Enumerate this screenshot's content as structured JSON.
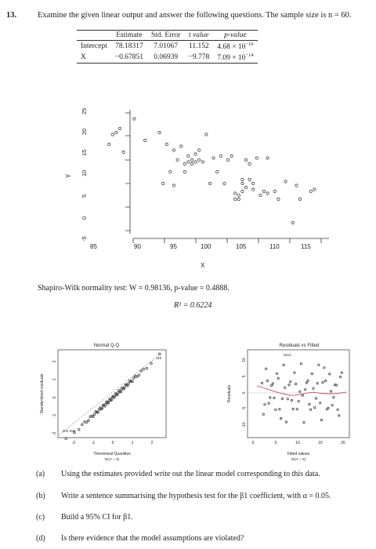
{
  "question": {
    "number": "13.",
    "text": "Examine the given linear output and answer the following questions. The sample size is n = 60."
  },
  "coef_table": {
    "headers": [
      "",
      "Estimate",
      "Std. Error",
      "t value",
      "p-value"
    ],
    "rows": [
      [
        "Intercept",
        "78.18317",
        "7.01067",
        "11.152",
        "4.68 × 10",
        "−16"
      ],
      [
        "X",
        "−0.67851",
        "0.06939",
        "−9.778",
        "7.09 × 10",
        "−14"
      ]
    ]
  },
  "scatter": {
    "ylabel": "Y",
    "xlabel": "X",
    "xticks": [
      "85",
      "90",
      "95",
      "100",
      "105",
      "110",
      "115"
    ],
    "yticks": [
      "-5",
      "0",
      "5",
      "10",
      "15",
      "20",
      "25"
    ]
  },
  "chart_data": [
    {
      "type": "scatter",
      "xlabel": "X",
      "ylabel": "Y",
      "xlim": [
        83,
        117
      ],
      "ylim": [
        -5.5,
        25.5
      ],
      "x": [
        86,
        86.5,
        87,
        87.5,
        88,
        89.5,
        91,
        93,
        93.5,
        94,
        94.5,
        95,
        95,
        95.5,
        96,
        96.5,
        96.5,
        97,
        97,
        97.5,
        97.5,
        98,
        98,
        98.5,
        98.5,
        99,
        99.5,
        100,
        100.5,
        101,
        101.5,
        102,
        102.5,
        103,
        103.5,
        103.5,
        104,
        104,
        104.5,
        104.5,
        104.5,
        105,
        105,
        105.5,
        105.5,
        106,
        106,
        106.5,
        107,
        107.5,
        108,
        108,
        109,
        109.5,
        110.5,
        111.5,
        112,
        112.5,
        114,
        114.5
      ],
      "y": [
        17,
        19.5,
        20,
        21,
        15,
        23.5,
        18,
        20,
        7,
        17,
        10,
        6.5,
        15.5,
        13,
        16.5,
        10,
        12,
        12.5,
        14,
        12,
        13,
        14.5,
        12.5,
        15.5,
        13,
        12.5,
        19.5,
        7,
        13.5,
        10,
        14,
        7,
        13,
        14,
        3,
        4.5,
        3,
        4,
        8,
        7,
        5,
        13,
        6,
        12,
        8,
        7,
        5.5,
        13.5,
        4,
        5,
        4.5,
        13.5,
        5,
        3,
        7.5,
        -3,
        6.5,
        3,
        5,
        5.5
      ]
    },
    {
      "type": "scatter",
      "title": "Normal Q-Q",
      "xlabel": "Theoretical Quantiles",
      "ylabel": "Standardized residuals",
      "xlim": [
        -2.6,
        2.6
      ],
      "ylim": [
        -2.4,
        2.7
      ],
      "point_labels": [
        "110",
        "41",
        "30"
      ]
    },
    {
      "type": "scatter",
      "title": "Residuals vs Fitted",
      "xlabel": "Fitted values",
      "ylabel": "Residuals",
      "xlim": [
        -1,
        22
      ],
      "ylim": [
        -12,
        12
      ],
      "point_labels": [
        "111"
      ]
    }
  ],
  "caption": {
    "shapiro": "Shapiro-Wilk normality test: W = 0.98136, p-value = 0.4888.",
    "r_squared": "R² = 0.6224"
  },
  "qq": {
    "title": "Normal Q-Q",
    "xlabel": "Theoretical Quantiles",
    "xsub": "lm(Y ~ X)",
    "ylabel": "Standardized residuals",
    "xticks": [
      "-2",
      "-1",
      "0",
      "1",
      "2"
    ],
    "yticks": [
      "-2",
      "-1",
      "0",
      "1",
      "2"
    ],
    "top_label": "110",
    "low_label": "041 030"
  },
  "rvf": {
    "title": "Residuals vs Fitted",
    "xlabel": "Fitted values",
    "xsub": "lm(Y ~ X)",
    "ylabel": "Residuals",
    "xticks": [
      "0",
      "5",
      "10",
      "15",
      "20"
    ],
    "yticks": [
      "-10",
      "-5",
      "0",
      "5",
      "10"
    ],
    "top_label": "0111"
  },
  "parts": [
    {
      "label": "(a)",
      "text": "Using the estimates provided write out the linear model corresponding to this data."
    },
    {
      "label": "(b)",
      "text": "Write a sentence summarising the hypothesis test for the β1 coefficient, with α = 0.05."
    },
    {
      "label": "(c)",
      "text": "Build a 95% CI for β1."
    },
    {
      "label": "(d)",
      "text": "Is there evidence that the model assumptions are violated?"
    }
  ]
}
